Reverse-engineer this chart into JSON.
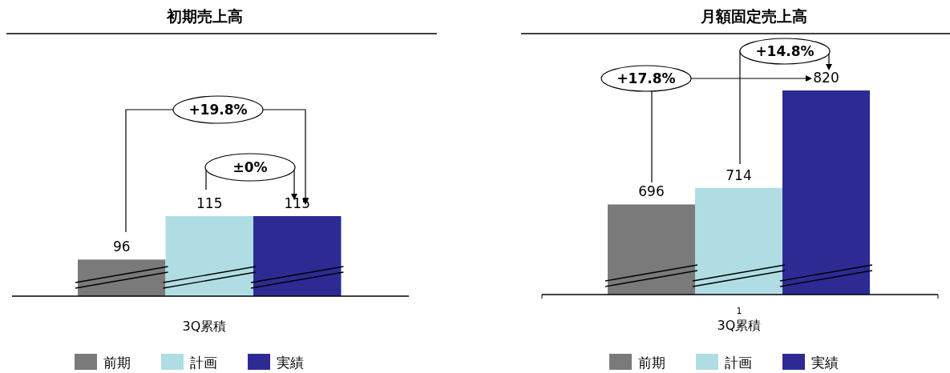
{
  "chart_data": [
    {
      "type": "bar",
      "title": "初期売上高",
      "xlabel": "3Q累積",
      "categories": [
        "前期",
        "計画",
        "実績"
      ],
      "values": [
        96,
        115,
        115
      ],
      "colors": [
        "#7a7a7a",
        "#b0dde3",
        "#2e2a94"
      ],
      "ylim": [
        80,
        115
      ],
      "data_labels": true,
      "tick_labels": false,
      "annotations": [
        "+19.8%",
        "±0%"
      ]
    },
    {
      "type": "bar",
      "title": "月額固定売上高",
      "xlabel": "3Q累積",
      "categories": [
        "前期",
        "計画",
        "実績"
      ],
      "values": [
        696,
        714,
        820
      ],
      "colors": [
        "#7a7a7a",
        "#b0dde3",
        "#2e2a94"
      ],
      "ylim": [
        598,
        820
      ],
      "data_labels": true,
      "tick_labels": false,
      "annotations": [
        "+17.8%",
        "+14.8%",
        "1"
      ]
    }
  ]
}
